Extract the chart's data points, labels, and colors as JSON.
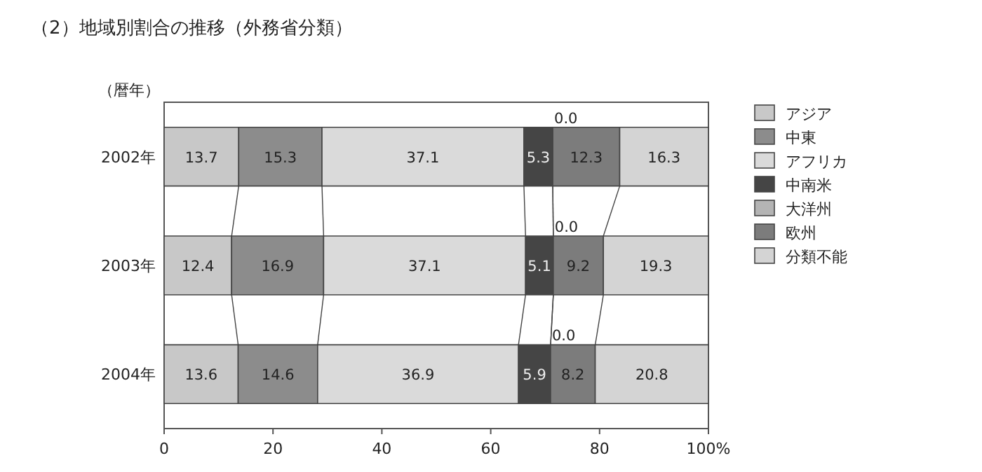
{
  "chart_data": {
    "type": "bar",
    "orientation": "horizontal",
    "stacked": true,
    "title": "（2）地域別割合の推移（外務省分類）",
    "ylabel": "（暦年）",
    "categories": [
      "2002年",
      "2003年",
      "2004年"
    ],
    "series": [
      {
        "name": "アジア",
        "color": "#c8c8c8",
        "values": [
          13.7,
          12.4,
          13.6
        ],
        "value_labels": [
          "13.7",
          "12.4",
          "13.6"
        ]
      },
      {
        "name": "中東",
        "color": "#8c8c8c",
        "values": [
          15.3,
          16.9,
          14.6
        ],
        "value_labels": [
          "15.3",
          "16.9",
          "14.6"
        ]
      },
      {
        "name": "アフリカ",
        "color": "#dadada",
        "values": [
          37.1,
          37.1,
          36.9
        ],
        "value_labels": [
          "37.1",
          "37.1",
          "36.9"
        ]
      },
      {
        "name": "中南米",
        "color": "#454545",
        "values": [
          5.3,
          5.1,
          5.9
        ],
        "value_labels": [
          "5.3",
          "5.1",
          "5.9"
        ]
      },
      {
        "name": "大洋州",
        "color": "#b4b4b4",
        "values": [
          0.0,
          0.0,
          0.0
        ],
        "value_labels": [
          null,
          null,
          null
        ]
      },
      {
        "name": "欧州",
        "color": "#7c7c7c",
        "values": [
          12.3,
          9.2,
          8.2
        ],
        "value_labels": [
          "12.3",
          "9.2",
          "8.2"
        ]
      },
      {
        "name": "分類不能",
        "color": "#d4d4d4",
        "values": [
          16.3,
          19.3,
          20.8
        ],
        "value_labels": [
          "16.3",
          "19.3",
          "20.8"
        ]
      }
    ],
    "xlim": [
      0,
      100
    ],
    "xticks": [
      0,
      20,
      40,
      60,
      80,
      {
        "value": 100,
        "label": "100%"
      }
    ],
    "annotations": [
      {
        "text": "0.0",
        "x": 71.4,
        "y": "2002年"
      },
      {
        "text": "0.0",
        "x": 71.5,
        "y": "2003年"
      },
      {
        "text": "0.0",
        "x": 71.0,
        "y": "2004年"
      }
    ],
    "legend": "right",
    "grid": false
  }
}
